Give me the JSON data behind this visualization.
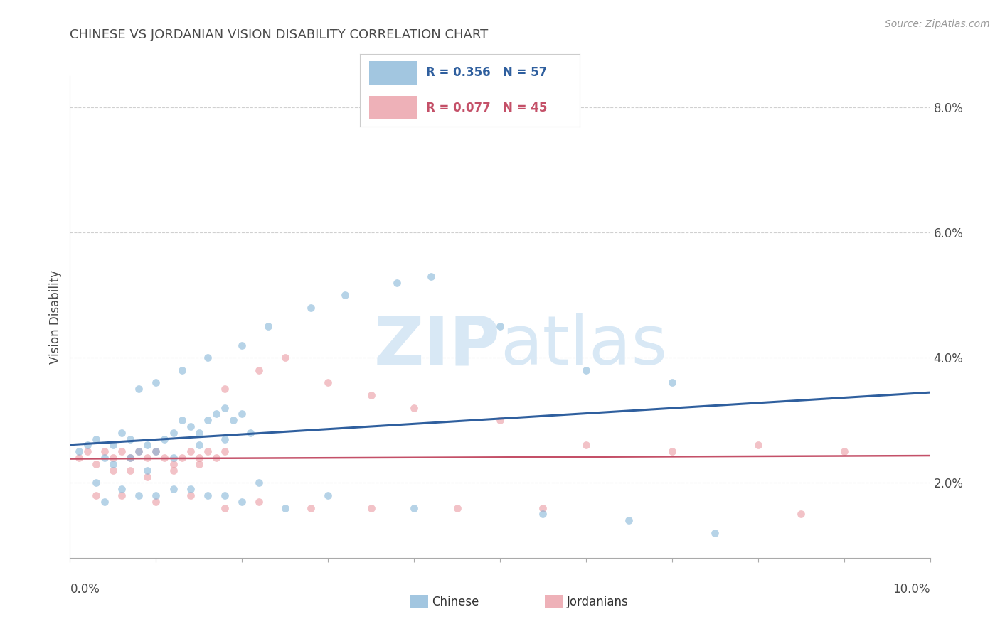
{
  "title": "CHINESE VS JORDANIAN VISION DISABILITY CORRELATION CHART",
  "source": "Source: ZipAtlas.com",
  "ylabel": "Vision Disability",
  "xlim": [
    0.0,
    0.1
  ],
  "ylim": [
    0.008,
    0.085
  ],
  "yticks": [
    0.02,
    0.04,
    0.06,
    0.08
  ],
  "ytick_labels": [
    "2.0%",
    "4.0%",
    "6.0%",
    "8.0%"
  ],
  "xtick_positions": [
    0.0,
    0.01,
    0.02,
    0.03,
    0.04,
    0.05,
    0.06,
    0.07,
    0.08,
    0.09,
    0.1
  ],
  "chinese_color": "#7bafd4",
  "jordanian_color": "#e8909a",
  "chinese_line_color": "#2f5f9e",
  "jordanian_line_color": "#c45068",
  "R_chinese": 0.356,
  "N_chinese": 57,
  "R_jordanian": 0.077,
  "N_jordanian": 45,
  "watermark": "ZIPatlas",
  "watermark_color": "#d8e8f5",
  "background_color": "#ffffff",
  "title_color": "#4a4a4a",
  "axis_color": "#4a4a4a",
  "grid_color": "#d0d0d0",
  "chinese_x": [
    0.001,
    0.002,
    0.003,
    0.004,
    0.005,
    0.006,
    0.007,
    0.008,
    0.009,
    0.01,
    0.011,
    0.012,
    0.013,
    0.014,
    0.015,
    0.016,
    0.017,
    0.018,
    0.019,
    0.02,
    0.005,
    0.007,
    0.009,
    0.012,
    0.015,
    0.018,
    0.021,
    0.008,
    0.01,
    0.013,
    0.016,
    0.02,
    0.023,
    0.028,
    0.032,
    0.038,
    0.042,
    0.05,
    0.06,
    0.07,
    0.003,
    0.006,
    0.01,
    0.014,
    0.018,
    0.022,
    0.004,
    0.008,
    0.012,
    0.016,
    0.02,
    0.025,
    0.03,
    0.04,
    0.055,
    0.065,
    0.075
  ],
  "chinese_y": [
    0.025,
    0.026,
    0.027,
    0.024,
    0.026,
    0.028,
    0.027,
    0.025,
    0.026,
    0.025,
    0.027,
    0.028,
    0.03,
    0.029,
    0.028,
    0.03,
    0.031,
    0.032,
    0.03,
    0.031,
    0.023,
    0.024,
    0.022,
    0.024,
    0.026,
    0.027,
    0.028,
    0.035,
    0.036,
    0.038,
    0.04,
    0.042,
    0.045,
    0.048,
    0.05,
    0.052,
    0.053,
    0.045,
    0.038,
    0.036,
    0.02,
    0.019,
    0.018,
    0.019,
    0.018,
    0.02,
    0.017,
    0.018,
    0.019,
    0.018,
    0.017,
    0.016,
    0.018,
    0.016,
    0.015,
    0.014,
    0.012
  ],
  "jordanian_x": [
    0.001,
    0.002,
    0.003,
    0.004,
    0.005,
    0.006,
    0.007,
    0.008,
    0.009,
    0.01,
    0.011,
    0.012,
    0.013,
    0.014,
    0.015,
    0.016,
    0.017,
    0.018,
    0.005,
    0.007,
    0.009,
    0.012,
    0.015,
    0.018,
    0.022,
    0.025,
    0.03,
    0.035,
    0.04,
    0.05,
    0.06,
    0.07,
    0.08,
    0.09,
    0.003,
    0.006,
    0.01,
    0.014,
    0.018,
    0.022,
    0.028,
    0.035,
    0.045,
    0.055,
    0.085
  ],
  "jordanian_y": [
    0.024,
    0.025,
    0.023,
    0.025,
    0.024,
    0.025,
    0.024,
    0.025,
    0.024,
    0.025,
    0.024,
    0.023,
    0.024,
    0.025,
    0.024,
    0.025,
    0.024,
    0.025,
    0.022,
    0.022,
    0.021,
    0.022,
    0.023,
    0.035,
    0.038,
    0.04,
    0.036,
    0.034,
    0.032,
    0.03,
    0.026,
    0.025,
    0.026,
    0.025,
    0.018,
    0.018,
    0.017,
    0.018,
    0.016,
    0.017,
    0.016,
    0.016,
    0.016,
    0.016,
    0.015
  ]
}
